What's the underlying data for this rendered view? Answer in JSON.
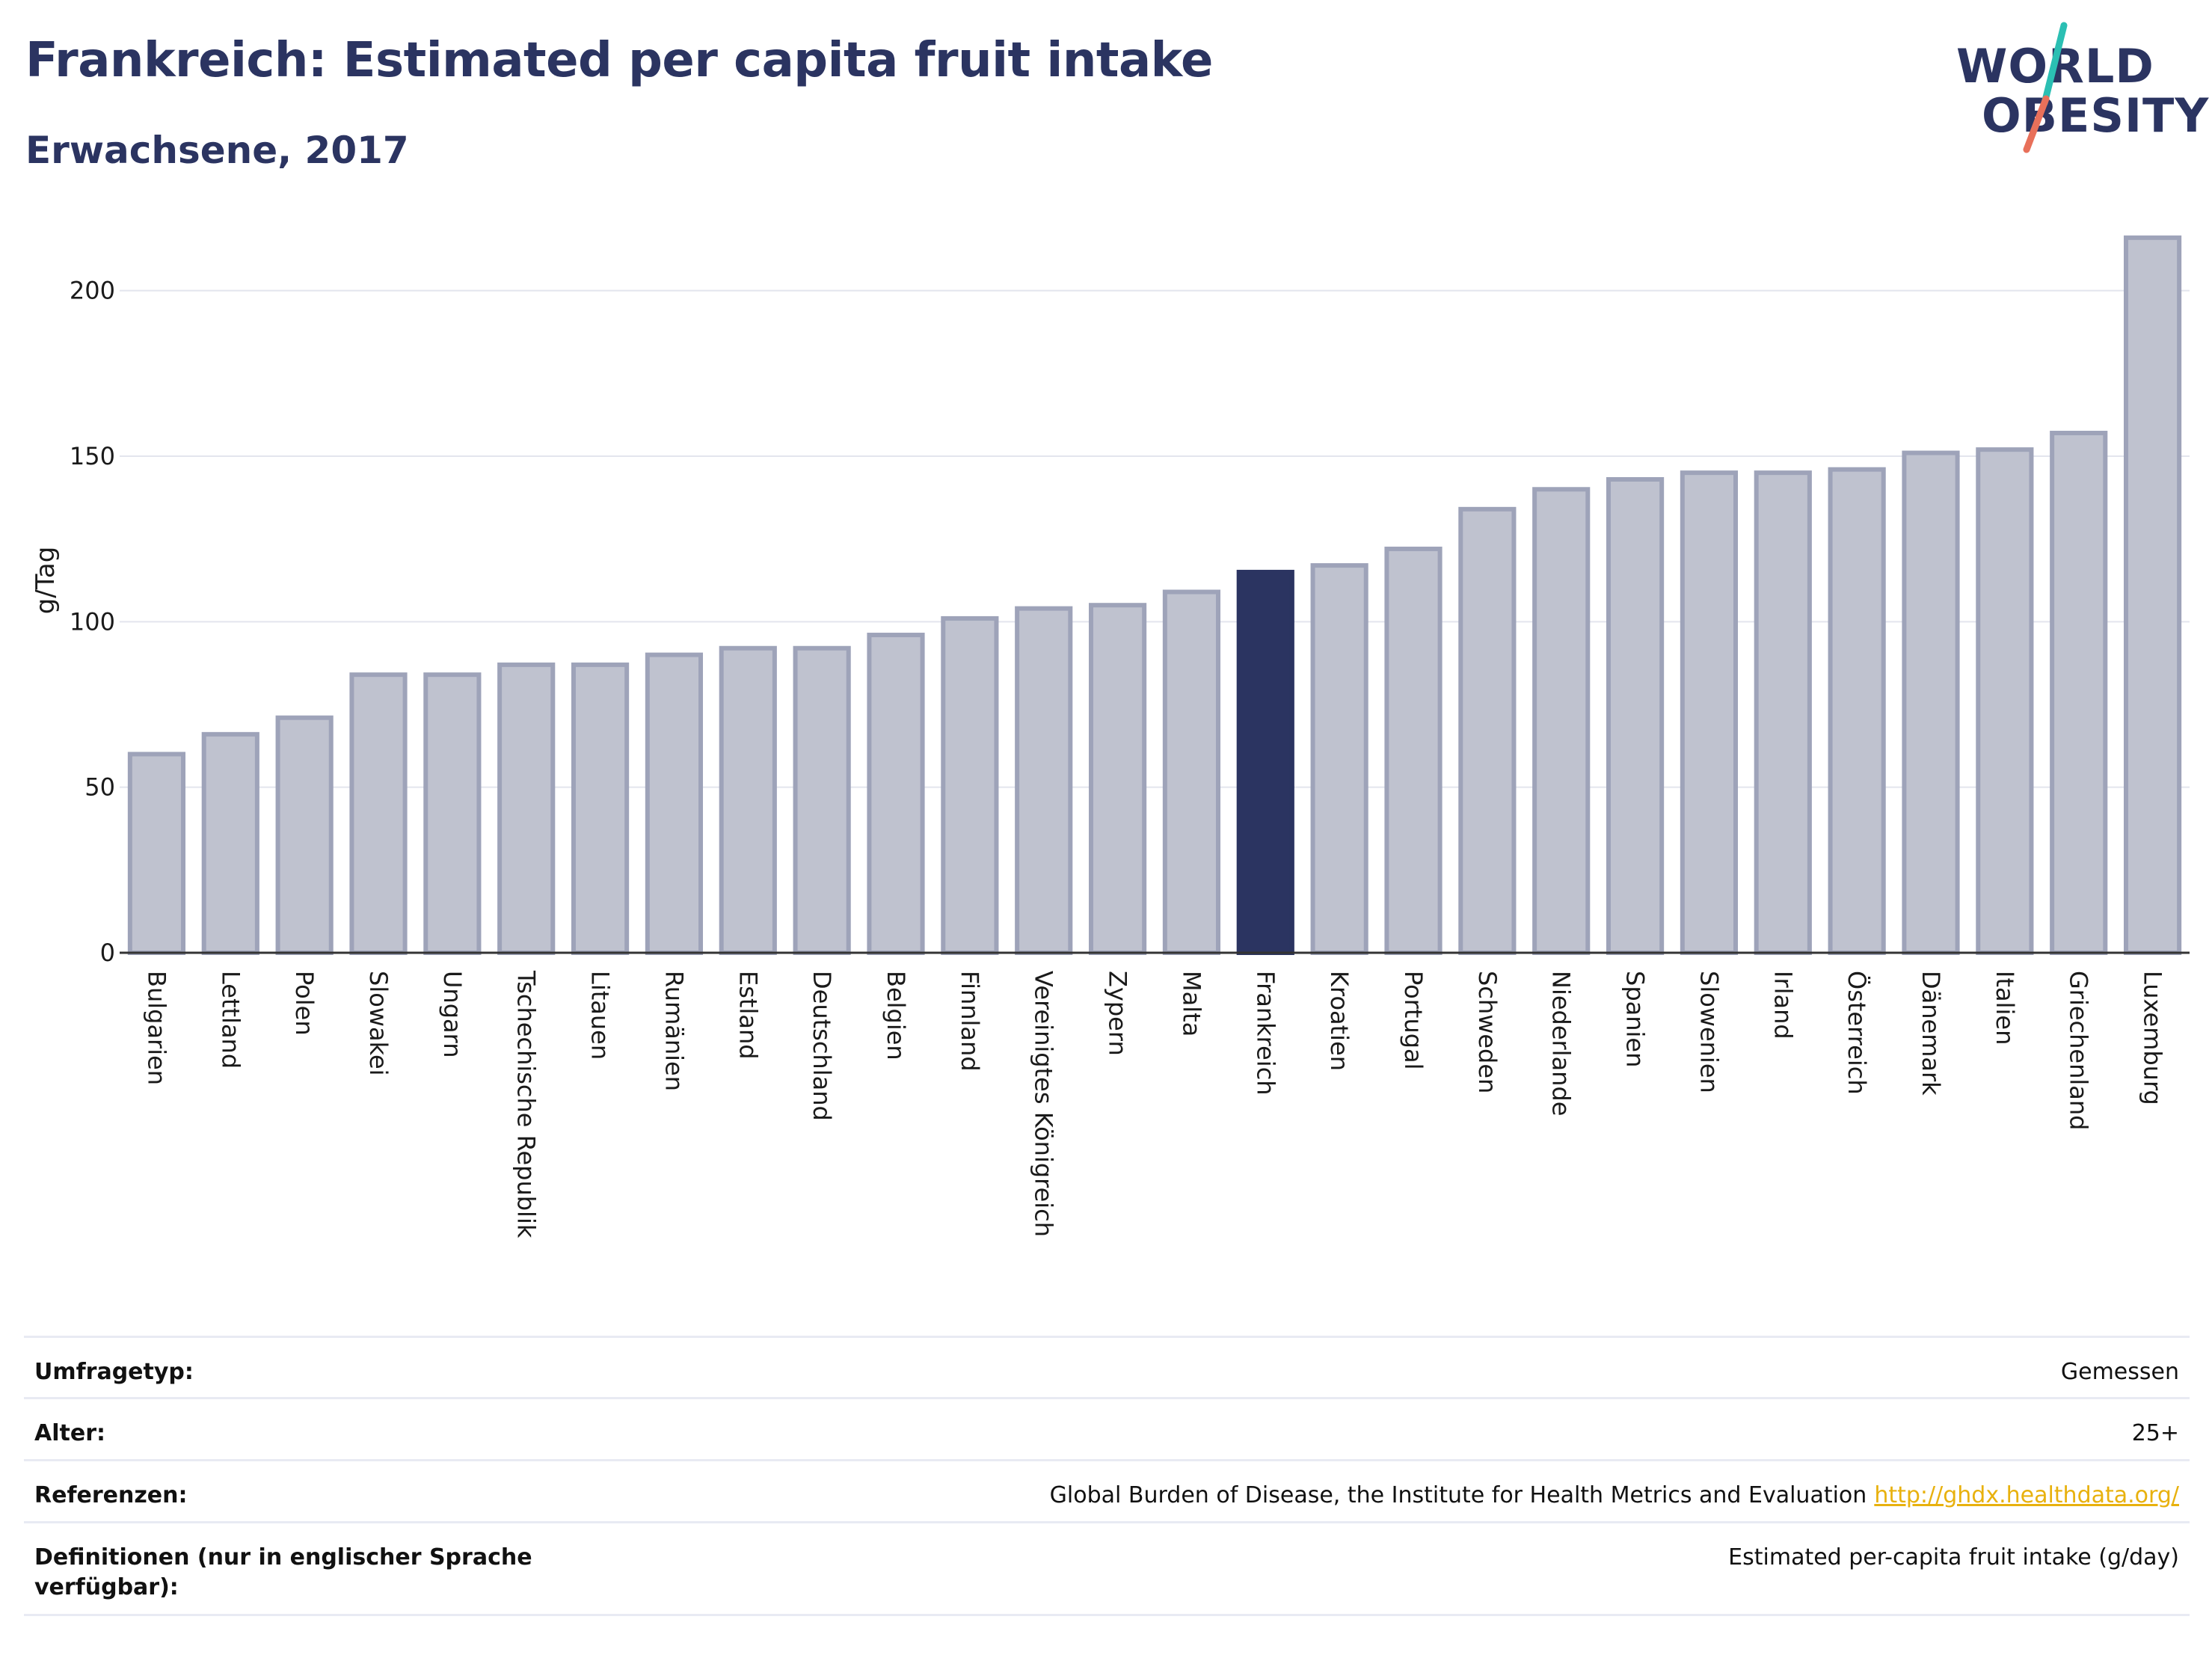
{
  "header": {
    "title": "Frankreich: Estimated per capita fruit intake",
    "subtitle": "Erwachsene, 2017"
  },
  "logo": {
    "line1": "WORLD",
    "line2": "OBESITY",
    "slash_color_top": "#2bbfb3",
    "slash_color_bottom": "#e8705a"
  },
  "colors": {
    "bar": "#bfc2cf",
    "bar_border": "#9ea3b9",
    "highlight": "#2b3461",
    "title": "#2b3461",
    "grid": "#e3e5ee",
    "link": "#e8b10e"
  },
  "chart_data": {
    "type": "bar",
    "ylabel": "g/Tag",
    "ylim": [
      0,
      225
    ],
    "yticks": [
      0,
      50,
      100,
      150,
      200
    ],
    "highlight": "Frankreich",
    "grid": true,
    "categories": [
      "Bulgarien",
      "Lettland",
      "Polen",
      "Slowakei",
      "Ungarn",
      "Tschechische Republik",
      "Litauen",
      "Rumänien",
      "Estland",
      "Deutschland",
      "Belgien",
      "Finnland",
      "Vereinigtes Königreich",
      "Zypern",
      "Malta",
      "Frankreich",
      "Kroatien",
      "Portugal",
      "Schweden",
      "Niederlande",
      "Spanien",
      "Slowenien",
      "Irland",
      "Österreich",
      "Dänemark",
      "Italien",
      "Griechenland",
      "Luxemburg"
    ],
    "values": [
      60,
      66,
      71,
      84,
      84,
      87,
      87,
      90,
      92,
      92,
      96,
      101,
      104,
      105,
      109,
      115,
      117,
      122,
      134,
      140,
      143,
      145,
      145,
      146,
      151,
      152,
      157,
      216
    ]
  },
  "meta": {
    "rows": [
      {
        "key": "Umfragetyp:",
        "value": "Gemessen"
      },
      {
        "key": "Alter:",
        "value": "25+"
      },
      {
        "key": "Referenzen:",
        "value": "Global Burden of Disease, the Institute for Health Metrics and Evaluation",
        "link": "http://ghdx.healthdata.org/"
      },
      {
        "key": "Definitionen (nur in englischer Sprache verfügbar):",
        "value": "Estimated per-capita fruit intake (g/day)"
      }
    ]
  }
}
